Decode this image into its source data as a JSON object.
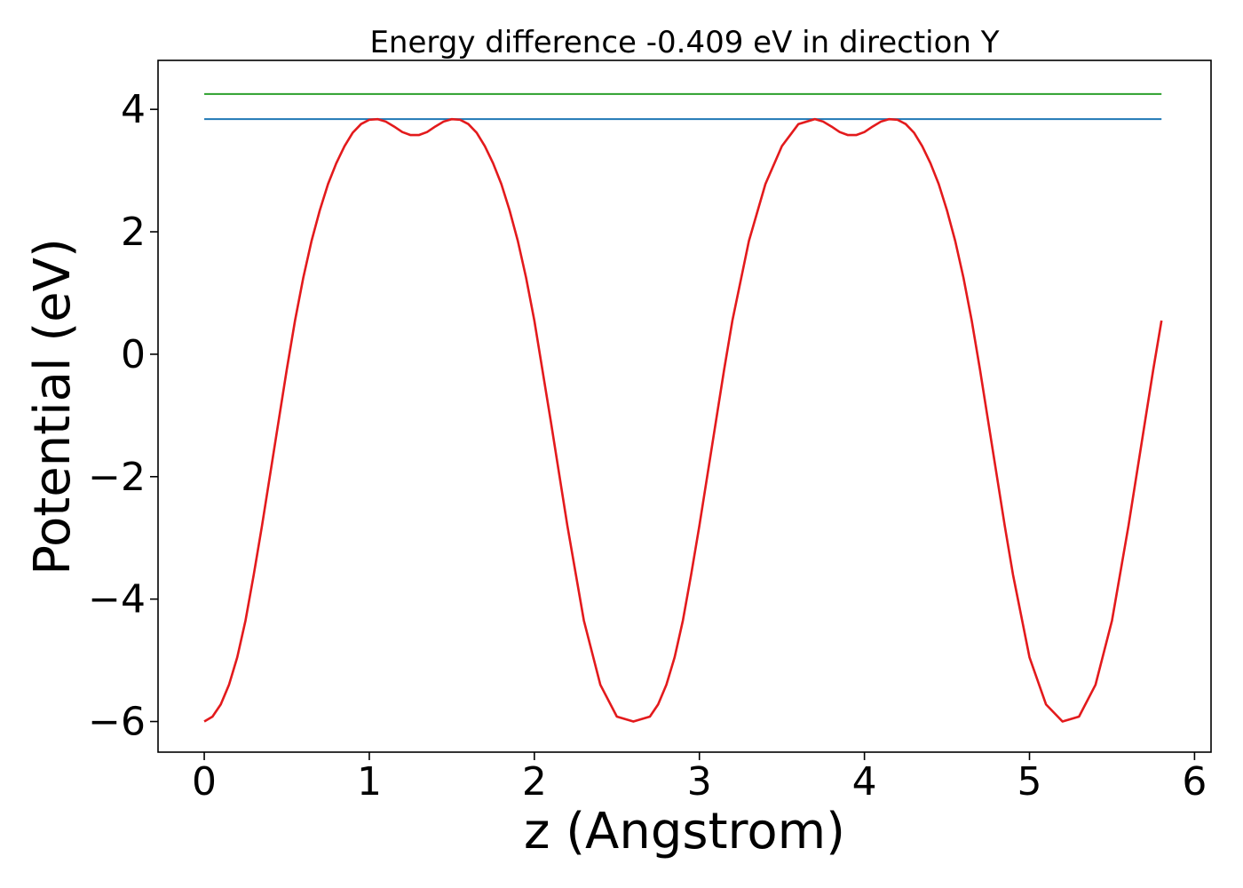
{
  "chart_data": {
    "type": "line",
    "title": "Energy difference -0.409 eV in direction Y",
    "xlabel": "z (Angstrom)",
    "ylabel": "Potential (eV)",
    "xlim": [
      -0.28,
      6.1
    ],
    "ylim": [
      -6.5,
      4.8
    ],
    "x_ticks": [
      0,
      1,
      2,
      3,
      4,
      5,
      6
    ],
    "x_tick_labels": [
      "0",
      "1",
      "2",
      "3",
      "4",
      "5",
      "6"
    ],
    "y_ticks": [
      4,
      2,
      0,
      -2,
      -4,
      -6
    ],
    "y_tick_labels": [
      "4",
      "2",
      "0",
      "−2",
      "−4",
      "−6"
    ],
    "grid": false,
    "series": [
      {
        "color": "#2ca02c",
        "x": [
          0,
          5.8
        ],
        "y": [
          4.25,
          4.25
        ]
      },
      {
        "color": "#1f77b4",
        "x": [
          0,
          5.8
        ],
        "y": [
          3.84,
          3.84
        ]
      },
      {
        "color": "#e31a1c",
        "x": [
          0,
          0.05,
          0.1,
          0.15,
          0.2,
          0.25,
          0.3,
          0.35,
          0.4,
          0.45,
          0.5,
          0.55,
          0.6,
          0.65,
          0.7,
          0.75,
          0.8,
          0.85,
          0.9,
          0.95,
          1.0,
          1.05,
          1.1,
          1.15,
          1.2,
          1.25,
          1.3,
          1.35,
          1.4,
          1.45,
          1.5,
          1.55,
          1.6,
          1.65,
          1.7,
          1.75,
          1.8,
          1.85,
          1.9,
          1.95,
          2.0,
          2.1,
          2.2,
          2.3,
          2.4,
          2.5,
          2.6,
          2.7,
          2.75,
          2.8,
          2.85,
          2.9,
          2.95,
          3.0,
          3.05,
          3.1,
          3.15,
          3.2,
          3.3,
          3.4,
          3.5,
          3.6,
          3.7,
          3.75,
          3.8,
          3.85,
          3.9,
          3.95,
          4.0,
          4.05,
          4.1,
          4.15,
          4.2,
          4.25,
          4.3,
          4.35,
          4.4,
          4.45,
          4.5,
          4.55,
          4.6,
          4.65,
          4.7,
          4.75,
          4.8,
          4.85,
          4.9,
          5.0,
          5.1,
          5.2,
          5.3,
          5.4,
          5.5,
          5.6,
          5.7,
          5.75,
          5.8
        ],
        "y": [
          -6.0,
          -5.92,
          -5.72,
          -5.4,
          -4.95,
          -4.35,
          -3.6,
          -2.8,
          -1.95,
          -1.1,
          -0.25,
          0.55,
          1.25,
          1.85,
          2.35,
          2.78,
          3.12,
          3.4,
          3.62,
          3.76,
          3.83,
          3.84,
          3.8,
          3.72,
          3.63,
          3.58,
          3.58,
          3.63,
          3.72,
          3.8,
          3.84,
          3.83,
          3.76,
          3.62,
          3.4,
          3.12,
          2.78,
          2.35,
          1.85,
          1.25,
          0.55,
          -1.1,
          -2.8,
          -4.35,
          -5.4,
          -5.92,
          -6.0,
          -5.92,
          -5.72,
          -5.4,
          -4.95,
          -4.35,
          -3.6,
          -2.8,
          -1.95,
          -1.1,
          -0.25,
          0.55,
          1.85,
          2.78,
          3.4,
          3.76,
          3.84,
          3.8,
          3.72,
          3.63,
          3.58,
          3.58,
          3.63,
          3.72,
          3.8,
          3.84,
          3.83,
          3.76,
          3.62,
          3.4,
          3.12,
          2.78,
          2.35,
          1.85,
          1.25,
          0.55,
          -0.25,
          -1.1,
          -1.95,
          -2.8,
          -3.6,
          -4.95,
          -5.72,
          -6.0,
          -5.92,
          -5.4,
          -4.35,
          -2.8,
          -1.1,
          -0.25,
          0.55
        ]
      }
    ]
  }
}
